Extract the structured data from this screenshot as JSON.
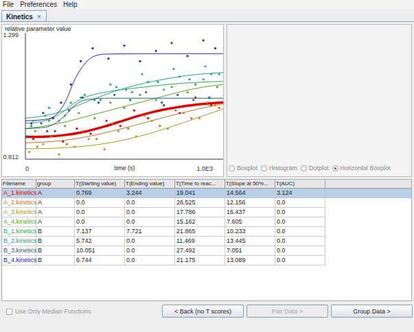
{
  "menu": [
    "File",
    "Preferences",
    "Help"
  ],
  "tab": {
    "title": "Kinetics",
    "close": "×"
  },
  "chart_data": {
    "type": "scatter",
    "y_label": "relative parameter value",
    "x_label": "time (s)",
    "xlim": [
      0,
      1000
    ],
    "xticks": [
      0,
      {
        "value": 1000,
        "label": "1.0E3"
      }
    ],
    "ylim": [
      0.812,
      1.299
    ],
    "yticks": [
      0.812,
      1.299
    ],
    "series": [
      {
        "type": "scatter",
        "color": "#e00000",
        "x": [
          40,
          110,
          190,
          260,
          330,
          410,
          480,
          550,
          620,
          700,
          780,
          860,
          940
        ],
        "values": [
          0.89,
          0.92,
          0.88,
          0.93,
          0.91,
          0.96,
          0.94,
          1.0,
          0.97,
          1.02,
          0.99,
          1.05,
          1.02
        ]
      },
      {
        "type": "scatter",
        "color": "#c87020",
        "x": [
          60,
          130,
          210,
          290,
          360,
          440,
          520,
          600,
          680,
          760,
          840,
          920,
          980
        ],
        "values": [
          0.86,
          0.9,
          0.87,
          0.92,
          0.89,
          0.95,
          0.93,
          0.98,
          0.94,
          1.0,
          0.97,
          1.03,
          1.01
        ]
      },
      {
        "type": "scatter",
        "color": "#a0a020",
        "x": [
          20,
          90,
          170,
          250,
          320,
          400,
          470,
          560,
          640,
          720,
          800,
          880,
          960
        ],
        "values": [
          0.84,
          0.87,
          0.83,
          0.86,
          0.89,
          0.85,
          0.92,
          0.9,
          0.96,
          0.93,
          0.99,
          0.97,
          1.02
        ]
      },
      {
        "type": "scatter",
        "color": "#4caf20",
        "x": [
          50,
          120,
          200,
          270,
          350,
          430,
          500,
          580,
          660,
          740,
          820,
          900,
          970
        ],
        "values": [
          0.92,
          0.96,
          0.94,
          0.99,
          0.97,
          1.03,
          1.01,
          1.06,
          1.04,
          1.09,
          1.07,
          1.12,
          1.09
        ]
      },
      {
        "type": "scatter",
        "color": "#20b050",
        "x": [
          30,
          100,
          170,
          230,
          300,
          380,
          460,
          540,
          620,
          700,
          780,
          860,
          940
        ],
        "values": [
          0.94,
          0.98,
          0.96,
          1.03,
          1.06,
          1.04,
          1.09,
          1.07,
          1.11,
          1.08,
          1.13,
          1.1,
          1.14
        ]
      },
      {
        "type": "scatter",
        "color": "#20a090",
        "x": [
          40,
          120,
          200,
          280,
          350,
          430,
          510,
          590,
          670,
          750,
          830,
          910,
          980
        ],
        "values": [
          0.96,
          1.01,
          0.98,
          1.05,
          1.04,
          1.1,
          1.08,
          1.14,
          1.11,
          1.16,
          1.12,
          1.17,
          1.14
        ]
      },
      {
        "type": "scatter",
        "color": "#206070",
        "x": [
          10,
          80,
          150,
          220,
          290,
          370,
          450,
          530,
          610,
          690,
          770,
          850,
          930
        ],
        "values": [
          0.9,
          0.95,
          0.92,
          1.0,
          1.05,
          1.03,
          1.06,
          1.04,
          1.07,
          1.03,
          1.06,
          1.04,
          1.05
        ]
      },
      {
        "type": "scatter",
        "color": "#2020e0",
        "x": [
          30,
          90,
          140,
          180,
          230,
          280,
          340,
          420,
          500,
          580,
          660,
          740,
          820,
          900,
          960
        ],
        "values": [
          0.95,
          0.99,
          0.97,
          1.03,
          1.1,
          1.19,
          1.24,
          1.2,
          1.25,
          1.19,
          1.23,
          1.26,
          1.21,
          1.27,
          1.24
        ]
      },
      {
        "type": "line",
        "color": "#e00000",
        "x": [
          0,
          100,
          200,
          300,
          400,
          500,
          600,
          700,
          800,
          900,
          1000
        ],
        "values": [
          0.898,
          0.899,
          0.905,
          0.918,
          0.938,
          0.962,
          0.985,
          1.003,
          1.016,
          1.025,
          1.031
        ]
      },
      {
        "type": "line",
        "color": "#c87020",
        "x": [
          0,
          100,
          200,
          300,
          400,
          500,
          600,
          700,
          800,
          900,
          1000
        ],
        "values": [
          0.875,
          0.878,
          0.885,
          0.897,
          0.913,
          0.932,
          0.952,
          0.973,
          0.992,
          1.01,
          1.025
        ]
      },
      {
        "type": "line",
        "color": "#a0a020",
        "x": [
          0,
          100,
          200,
          300,
          400,
          500,
          600,
          700,
          800,
          900,
          1000
        ],
        "values": [
          0.852,
          0.853,
          0.856,
          0.862,
          0.872,
          0.886,
          0.905,
          0.928,
          0.953,
          0.98,
          1.005
        ]
      },
      {
        "type": "line",
        "color": "#4caf20",
        "x": [
          0,
          100,
          200,
          300,
          400,
          500,
          600,
          700,
          800,
          900,
          1000
        ],
        "values": [
          0.93,
          0.94,
          0.955,
          0.975,
          0.995,
          1.015,
          1.035,
          1.055,
          1.075,
          1.09,
          1.1
        ]
      },
      {
        "type": "line",
        "color": "#20b050",
        "x": [
          0,
          100,
          150,
          200,
          250,
          300,
          400,
          600,
          800,
          1000
        ],
        "values": [
          0.95,
          0.96,
          0.975,
          1.0,
          1.03,
          1.05,
          1.07,
          1.09,
          1.105,
          1.112
        ]
      },
      {
        "type": "line",
        "color": "#20a090",
        "x": [
          0,
          100,
          200,
          300,
          400,
          500,
          600,
          700,
          800,
          900,
          1000
        ],
        "values": [
          0.97,
          0.98,
          1.0,
          1.03,
          1.06,
          1.085,
          1.105,
          1.12,
          1.133,
          1.141,
          1.146
        ]
      },
      {
        "type": "line",
        "color": "#206070",
        "x": [
          0,
          100,
          150,
          200,
          250,
          300,
          350,
          400,
          600,
          1000
        ],
        "values": [
          0.93,
          0.935,
          0.95,
          0.98,
          1.02,
          1.04,
          1.045,
          1.047,
          1.047,
          1.047
        ]
      },
      {
        "type": "line",
        "color": "#2020e0",
        "x": [
          0,
          100,
          150,
          200,
          250,
          300,
          350,
          400,
          600,
          1000
        ],
        "values": [
          0.96,
          0.965,
          0.98,
          1.03,
          1.12,
          1.18,
          1.21,
          1.217,
          1.219,
          1.219
        ]
      }
    ]
  },
  "plot_options": {
    "options": [
      "Boxplot",
      "Histogram",
      "Dotplot",
      "Horizontal Boxplot"
    ],
    "selected": "Horizontal Boxplot"
  },
  "table": {
    "columns": [
      "Filename",
      "group",
      "T(Starting value)",
      "T(Ending value)",
      "T(Time to reac...",
      "T(Slope at 50%...",
      "T(AUC)"
    ],
    "rows": [
      {
        "cells": [
          "A_1.kinetics",
          "A",
          "0.769",
          "3.244",
          "19.041",
          "14.564",
          "3.124"
        ],
        "selected": true
      },
      {
        "cells": [
          "A_2.kinetics",
          "A",
          "0.0",
          "0.0",
          "26.525",
          "12.156",
          "0.0"
        ],
        "selected": false
      },
      {
        "cells": [
          "A_3.kinetics",
          "A",
          "0.0",
          "0.0",
          "17.786",
          "16.437",
          "0.0"
        ],
        "selected": false
      },
      {
        "cells": [
          "A_4.kinetics",
          "A",
          "0.0",
          "0.0",
          "15.162",
          "7.605",
          "0.0"
        ],
        "selected": false
      },
      {
        "cells": [
          "B_1.kinetics",
          "B",
          "7.137",
          "7.721",
          "21.865",
          "10.233",
          "0.0"
        ],
        "selected": false
      },
      {
        "cells": [
          "B_2.kinetics",
          "B",
          "5.742",
          "0.0",
          "11.469",
          "13.445",
          "0.0"
        ],
        "selected": false
      },
      {
        "cells": [
          "B_3.kinetics",
          "B",
          "10.051",
          "0.0",
          "27.492",
          "7.051",
          "0.0"
        ],
        "selected": false
      },
      {
        "cells": [
          "B_4.kinetics",
          "B",
          "6.744",
          "0.0",
          "21.175",
          "13.089",
          "0.0"
        ],
        "selected": false
      }
    ]
  },
  "checkbox": {
    "label": "Use Only Median Functions",
    "checked": false
  },
  "buttons": [
    {
      "label": "< Back (no T scores)",
      "enabled": true
    },
    {
      "label": "Pair Data >",
      "enabled": false
    },
    {
      "label": "Group Data >",
      "enabled": true
    }
  ]
}
